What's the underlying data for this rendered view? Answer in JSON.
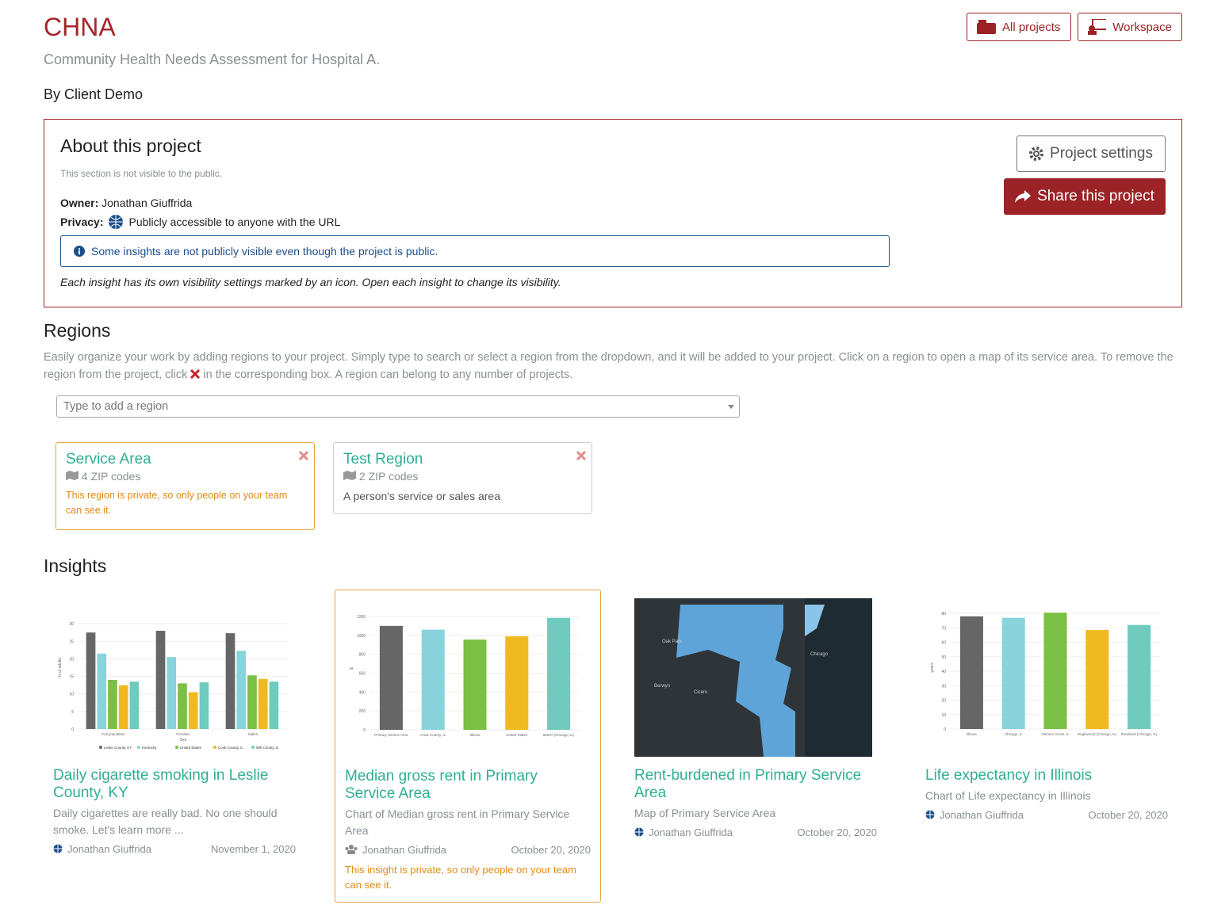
{
  "header": {
    "title": "CHNA",
    "subtitle": "Community Health Needs Assessment for Hospital A.",
    "byline": "By Client Demo",
    "buttons": [
      "All projects",
      "Workspace"
    ]
  },
  "about": {
    "title": "About this project",
    "note": "This section is not visible to the public.",
    "owner_label": "Owner:",
    "owner": "Jonathan Giuffrida",
    "privacy_label": "Privacy:",
    "privacy": "Publicly accessible to anyone with the URL",
    "alert": "Some insights are not publicly visible even though the project is public.",
    "footnote": "Each insight has its own visibility settings marked by an icon. Open each insight to change its visibility.",
    "settings_button": "Project settings",
    "share_button": "Share this project"
  },
  "regions": {
    "title": "Regions",
    "description_before": "Easily organize your work by adding regions to your project. Simply type to search or select a region from the dropdown, and it will be added to your project. Click on a region to open a map of its service area. To remove the region from the project, click",
    "description_after": "in the corresponding box. A region can belong to any number of projects.",
    "search_placeholder": "Type to add a region",
    "items": [
      {
        "name": "Service Area",
        "zip_codes": "4 ZIP codes",
        "note": "This region is private, so only people on your team can see it."
      },
      {
        "name": "Test Region",
        "zip_codes": "2 ZIP codes",
        "note": "A person's service or sales area"
      }
    ]
  },
  "insights": {
    "title": "Insights",
    "items": [
      {
        "title": "Daily cigarette smoking in Leslie County, KY",
        "description": "Daily cigarettes are really bad. No one should smoke. Let's learn more ...",
        "author": "Jonathan Giuffrida",
        "date": "November 1, 2020",
        "thumbnail": {
          "type": "bar",
          "y_label": "% of adults",
          "x_label": "Sex",
          "categories": [
            "Full population",
            "Females",
            "Males"
          ],
          "series": [
            {
              "name": "Leslie County, KY",
              "color": "#666666",
              "values": [
                27.5,
                28,
                27.3
              ]
            },
            {
              "name": "Kentucky",
              "color": "#88d3dc",
              "values": [
                21.5,
                20.5,
                22.3
              ]
            },
            {
              "name": "United States",
              "color": "#7bbf45",
              "values": [
                14,
                13,
                15.3
              ]
            },
            {
              "name": "Cook County, IL",
              "color": "#f0b920",
              "values": [
                12.5,
                10.5,
                14.3
              ]
            },
            {
              "name": "Will County, IL",
              "color": "#6ecbbd",
              "values": [
                13.5,
                13.3,
                13.5
              ]
            }
          ],
          "ylim": [
            0,
            35
          ],
          "yticks": [
            0,
            5,
            10,
            15,
            20,
            25,
            30
          ]
        }
      },
      {
        "title": "Median gross rent in Primary Service Area",
        "description": "Chart of Median gross rent in Primary Service Area",
        "author": "Jonathan Giuffrida",
        "date": "October 20, 2020",
        "private_note": "This insight is private, so only people on your team can see it.",
        "thumbnail": {
          "type": "bar",
          "y_label": "$",
          "categories": [
            "Primary Service Area",
            "Cook County, IL",
            "Illinois",
            "United States",
            "60647 (Chicago, IL)"
          ],
          "values": [
            1100,
            1060,
            955,
            990,
            1185
          ],
          "colors": [
            "#666666",
            "#88d3dc",
            "#7bbf45",
            "#f0b920",
            "#6ecbbd"
          ],
          "ylim": [
            0,
            1300
          ],
          "yticks": [
            0,
            200,
            400,
            600,
            800,
            1000,
            1200
          ]
        }
      },
      {
        "title": "Rent-burdened in Primary Service Area",
        "description": "Map of Primary Service Area",
        "author": "Jonathan Giuffrida",
        "date": "October 20, 2020",
        "thumbnail": {
          "type": "map",
          "labels": [
            "Oak Park",
            "Berwyn",
            "Cicero",
            "Chicago"
          ]
        }
      },
      {
        "title": "Life expectancy in Illinois",
        "description": "Chart of Life expectancy in Illinois",
        "author": "Jonathan Giuffrida",
        "date": "October 20, 2020",
        "thumbnail": {
          "type": "bar",
          "y_label": "years",
          "categories": [
            "Illinois",
            "Chicago, IL",
            "Owners Grove, IL",
            "Englewood (Chicago, IL)",
            "Roseland (Chicago, IL)"
          ],
          "values": [
            78,
            77,
            80.5,
            68.5,
            72
          ],
          "colors": [
            "#666666",
            "#88d3dc",
            "#7bbf45",
            "#f0b920",
            "#6ecbbd"
          ],
          "ylim": [
            0,
            85
          ],
          "yticks": [
            0,
            10,
            20,
            30,
            40,
            50,
            60,
            70,
            80
          ]
        }
      }
    ]
  }
}
